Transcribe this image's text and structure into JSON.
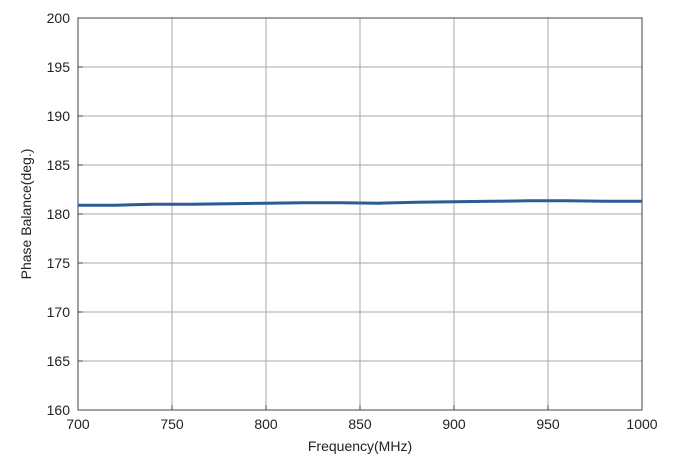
{
  "chart_data": {
    "type": "line",
    "title": "",
    "xlabel": "Frequency(MHz)",
    "ylabel": "Phase Balance(deg.)",
    "xlim": [
      700,
      1000
    ],
    "ylim": [
      160,
      200
    ],
    "x_ticks": [
      700,
      750,
      800,
      850,
      900,
      950,
      1000
    ],
    "y_ticks": [
      160,
      165,
      170,
      175,
      180,
      185,
      190,
      195,
      200
    ],
    "grid": true,
    "legend": "none",
    "series": [
      {
        "color": "#2a5d95",
        "x": [
          700,
          720,
          740,
          760,
          780,
          800,
          820,
          840,
          860,
          880,
          900,
          920,
          940,
          960,
          980,
          1000
        ],
        "y": [
          180.9,
          180.9,
          181.0,
          181.0,
          181.05,
          181.1,
          181.15,
          181.15,
          181.1,
          181.2,
          181.25,
          181.3,
          181.35,
          181.35,
          181.3,
          181.3
        ]
      }
    ]
  }
}
